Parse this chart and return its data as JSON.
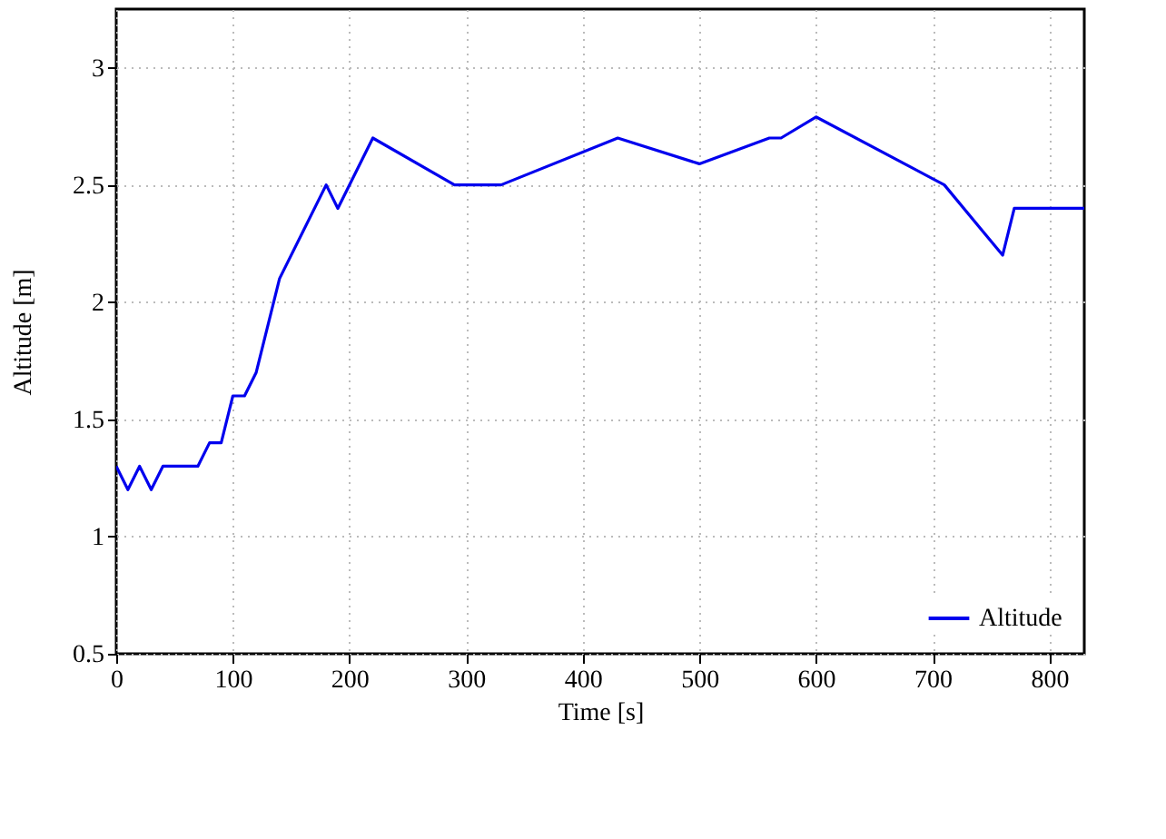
{
  "chart_data": {
    "type": "line",
    "xlabel": "Time [s]",
    "ylabel": "Altitude [m]",
    "x": [
      0,
      10,
      20,
      30,
      40,
      70,
      80,
      90,
      100,
      110,
      120,
      140,
      180,
      190,
      220,
      290,
      330,
      430,
      500,
      560,
      570,
      600,
      710,
      760,
      770,
      830
    ],
    "series": [
      {
        "name": "Altitude",
        "color": "#0000ee",
        "values": [
          1.3,
          1.2,
          1.3,
          1.2,
          1.3,
          1.3,
          1.4,
          1.4,
          1.6,
          1.6,
          1.7,
          2.1,
          2.5,
          2.4,
          2.7,
          2.5,
          2.5,
          2.7,
          2.59,
          2.7,
          2.7,
          2.79,
          2.5,
          2.2,
          2.4,
          2.4
        ]
      }
    ],
    "xlim": [
      0,
      830
    ],
    "xticks": [
      0,
      100,
      200,
      300,
      400,
      500,
      600,
      700,
      800
    ],
    "ylim": [
      0.5,
      3.25
    ],
    "yticks": [
      0.5,
      1,
      1.5,
      2,
      2.5,
      3
    ],
    "grid": true,
    "legend": "bottom right",
    "line_style": "solid",
    "marker": "none"
  }
}
